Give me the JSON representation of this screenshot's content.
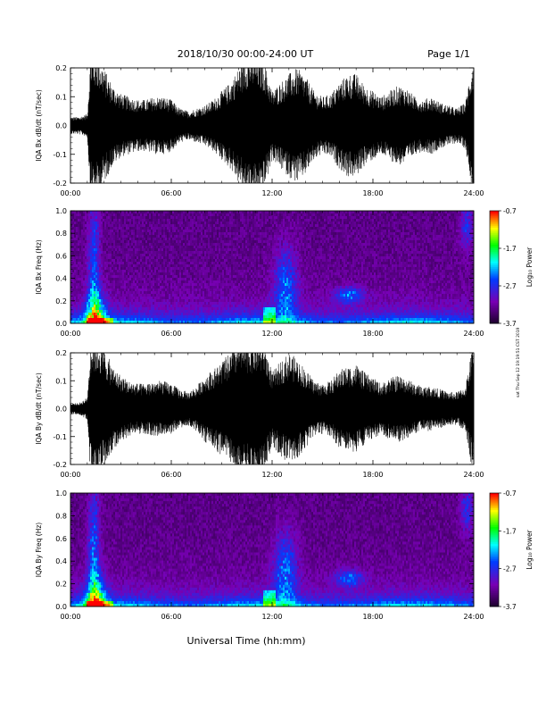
{
  "header": {
    "title": "2018/10/30  00:00-24:00 UT",
    "page": "Page 1/1"
  },
  "side_note": "sat Thu Sep 12 19:19:51 CST 2019",
  "x_axis": {
    "ticks": [
      "00:00",
      "06:00",
      "12:00",
      "18:00",
      "24:00"
    ],
    "label": "Universal Time (hh:mm)",
    "range_hours": [
      0,
      24
    ]
  },
  "colorbar": {
    "label": "Log₁₀ Power",
    "ticks": [
      "-0.7",
      "-1.7",
      "-2.7",
      "-3.7"
    ],
    "range": [
      -3.7,
      -0.7
    ]
  },
  "chart_data": [
    {
      "type": "line",
      "id": "bx-dbdt",
      "ylabel": "IQA Bx dB/dt (nT/sec)",
      "ylim": [
        -0.2,
        0.2
      ],
      "yticks": [
        "0.2",
        "0.1",
        "0.0",
        "-0.1",
        "-0.2"
      ],
      "x": [
        0,
        0.5,
        1,
        1.2,
        1.4,
        1.6,
        2,
        2.5,
        3,
        3.5,
        4,
        4.5,
        5,
        5.5,
        6,
        6.5,
        7,
        7.5,
        8,
        8.5,
        9,
        9.5,
        10,
        10.5,
        11,
        11.5,
        12,
        12.5,
        13,
        13.5,
        14,
        14.5,
        15,
        15.5,
        16,
        16.5,
        17,
        17.5,
        18,
        18.5,
        19,
        19.5,
        20,
        20.5,
        21,
        21.5,
        22,
        22.5,
        23,
        23.5,
        24
      ],
      "envelope": [
        0.03,
        0.03,
        0.04,
        0.25,
        0.25,
        0.25,
        0.2,
        0.14,
        0.11,
        0.1,
        0.09,
        0.09,
        0.1,
        0.1,
        0.09,
        0.06,
        0.05,
        0.06,
        0.07,
        0.09,
        0.12,
        0.15,
        0.2,
        0.25,
        0.25,
        0.23,
        0.12,
        0.15,
        0.18,
        0.2,
        0.17,
        0.12,
        0.1,
        0.11,
        0.15,
        0.18,
        0.18,
        0.14,
        0.12,
        0.1,
        0.12,
        0.14,
        0.13,
        0.1,
        0.09,
        0.1,
        0.08,
        0.07,
        0.06,
        0.08,
        0.25
      ]
    },
    {
      "type": "heatmap",
      "id": "bx-freq",
      "ylabel": "IQA Bx Freq (Hz)",
      "ylim": [
        0,
        1.0
      ],
      "yticks": [
        "1.0",
        "0.8",
        "0.6",
        "0.4",
        "0.2",
        "0.0"
      ],
      "zlim": [
        -3.7,
        -0.7
      ]
    },
    {
      "type": "line",
      "id": "by-dbdt",
      "ylabel": "IQA By dB/dt (nT/sec)",
      "ylim": [
        -0.2,
        0.2
      ],
      "yticks": [
        "0.2",
        "0.1",
        "0.0",
        "-0.1",
        "-0.2"
      ],
      "x": [
        0,
        0.5,
        1,
        1.2,
        1.4,
        1.6,
        2,
        2.5,
        3,
        3.5,
        4,
        4.5,
        5,
        5.5,
        6,
        6.5,
        7,
        7.5,
        8,
        8.5,
        9,
        9.5,
        10,
        10.5,
        11,
        11.5,
        12,
        12.5,
        13,
        13.5,
        14,
        14.5,
        15,
        15.5,
        16,
        16.5,
        17,
        17.5,
        18,
        18.5,
        19,
        19.5,
        20,
        20.5,
        21,
        21.5,
        22,
        22.5,
        23,
        23.5,
        24
      ],
      "envelope": [
        0.02,
        0.02,
        0.04,
        0.25,
        0.25,
        0.25,
        0.22,
        0.15,
        0.12,
        0.1,
        0.09,
        0.09,
        0.1,
        0.1,
        0.09,
        0.07,
        0.06,
        0.08,
        0.12,
        0.14,
        0.17,
        0.2,
        0.25,
        0.25,
        0.25,
        0.25,
        0.13,
        0.17,
        0.2,
        0.18,
        0.14,
        0.1,
        0.09,
        0.1,
        0.14,
        0.15,
        0.16,
        0.13,
        0.11,
        0.09,
        0.11,
        0.12,
        0.11,
        0.09,
        0.08,
        0.08,
        0.07,
        0.06,
        0.06,
        0.08,
        0.25
      ]
    },
    {
      "type": "heatmap",
      "id": "by-freq",
      "ylabel": "IQA By Freq (Hz)",
      "ylim": [
        0,
        1.0
      ],
      "yticks": [
        "1.0",
        "0.8",
        "0.6",
        "0.4",
        "0.2",
        "0.0"
      ],
      "zlim": [
        -3.7,
        -0.7
      ]
    }
  ]
}
